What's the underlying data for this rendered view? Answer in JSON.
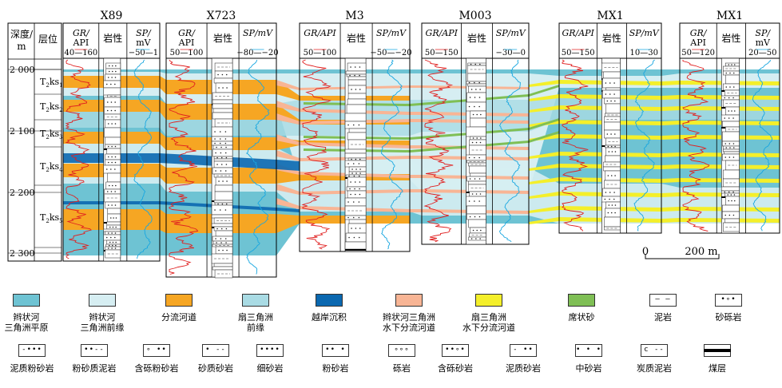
{
  "depth_header": {
    "line1": "深度/",
    "line2": "m"
  },
  "layer_header": "层位",
  "depth_ticks": [
    "2 000",
    "2 100",
    "2 200",
    "2 300"
  ],
  "layers": [
    {
      "base": "T",
      "sub": "2",
      "mid": "ks",
      "sub2": "1"
    },
    {
      "base": "T",
      "sub": "2",
      "mid": "ks",
      "sub2": "2"
    },
    {
      "base": "T",
      "sub": "2",
      "mid": "ks",
      "sub2": "3"
    },
    {
      "base": "T",
      "sub": "2",
      "mid": "ks",
      "sub2": "4"
    },
    {
      "base": "T",
      "sub": "2",
      "mid": "ks",
      "sub2": "5"
    }
  ],
  "wells": [
    {
      "name": "X89",
      "gr_label": "GR/",
      "gr_unit": "API",
      "gr_range": "40—160",
      "lith": "岩性",
      "sp_label": "SP/",
      "sp_unit": "mV",
      "sp_range": "−50—1"
    },
    {
      "name": "X723",
      "gr_label": "GR/",
      "gr_unit": "API",
      "gr_range": "50—100",
      "lith": "岩性",
      "sp_label": "SP/mV",
      "sp_unit": "",
      "sp_range": "−80—−20"
    },
    {
      "name": "M3",
      "gr_label": "GR/API",
      "gr_unit": "",
      "gr_range": "50—100",
      "lith": "岩性",
      "sp_label": "SP/mV",
      "sp_unit": "",
      "sp_range": "−50—−20"
    },
    {
      "name": "M003",
      "gr_label": "GR/API",
      "gr_unit": "",
      "gr_range": "50—150",
      "lith": "岩性",
      "sp_label": "SP/mV",
      "sp_unit": "",
      "sp_range": "−30—0"
    },
    {
      "name": "MX1",
      "gr_label": "GR/API",
      "gr_unit": "",
      "gr_range": "50—150",
      "lith": "岩性",
      "sp_label": "SP/mV",
      "sp_unit": "",
      "sp_range": "10—30"
    },
    {
      "name": "MX1",
      "gr_label": "GR/",
      "gr_unit": "API",
      "gr_range": "50—120",
      "lith": "岩性",
      "sp_label": "SP/",
      "sp_unit": "mV",
      "sp_range": "20—50"
    }
  ],
  "scale_bar": {
    "start": "0",
    "end": "200 m"
  },
  "legend_row1": [
    {
      "label1": "辫状河",
      "label2": "三角洲平原",
      "color": "#6ec3d3",
      "pattern": ""
    },
    {
      "label1": "辫状河",
      "label2": "三角洲前缘",
      "color": "#d6eef2",
      "pattern": ""
    },
    {
      "label1": "分流河道",
      "label2": "",
      "color": "#f6a623",
      "pattern": ""
    },
    {
      "label1": "扇三角洲",
      "label2": "前缘",
      "color": "#a9dbe4",
      "pattern": ""
    },
    {
      "label1": "越岸沉积",
      "label2": "",
      "color": "#0b68b0",
      "pattern": ""
    },
    {
      "label1": "辫状河三角洲",
      "label2": "水下分流河道",
      "color": "#f8b595",
      "pattern": ""
    },
    {
      "label1": "扇三角洲",
      "label2": "水下分流河道",
      "color": "#f4ef2a",
      "pattern": ""
    },
    {
      "label1": "席状砂",
      "label2": "",
      "color": "#7fbf55",
      "pattern": ""
    },
    {
      "label1": "泥岩",
      "label2": "",
      "color": "#ffffff",
      "pattern": "— —"
    },
    {
      "label1": "砂砾岩",
      "label2": "",
      "color": "#ffffff",
      "pattern": "•∘•"
    }
  ],
  "legend_row2": [
    {
      "label": "泥质粉砂岩",
      "pattern": "-•••"
    },
    {
      "label": "粉砂质泥岩",
      "pattern": "••--"
    },
    {
      "label": "含砾粉砂岩",
      "pattern": "∘ ••"
    },
    {
      "label": "砂质砂岩",
      "pattern": "• --"
    },
    {
      "label": "细砂岩",
      "pattern": "••••"
    },
    {
      "label": "粉砂岩",
      "pattern": "•• •"
    },
    {
      "label": "砾岩",
      "pattern": "∘∘∘"
    },
    {
      "label": "含砾砂岩",
      "pattern": "••∘•"
    },
    {
      "label": "泥质砂岩",
      "pattern": "- ••"
    },
    {
      "label": "中砂岩",
      "pattern": "• • •"
    },
    {
      "label": "炭质泥岩",
      "pattern": "c --"
    },
    {
      "label": "煤层",
      "pattern": ""
    }
  ],
  "colors": {
    "plain": "#6ec3d3",
    "front": "#d6eef2",
    "channel": "#f6a623",
    "fan_front": "#a9dbe4",
    "overbank": "#0b68b0",
    "braided_sub": "#f8b595",
    "fan_sub": "#f4ef2a",
    "sheet": "#7fbf55",
    "gr": "#e02020",
    "sp": "#19a7e0"
  }
}
